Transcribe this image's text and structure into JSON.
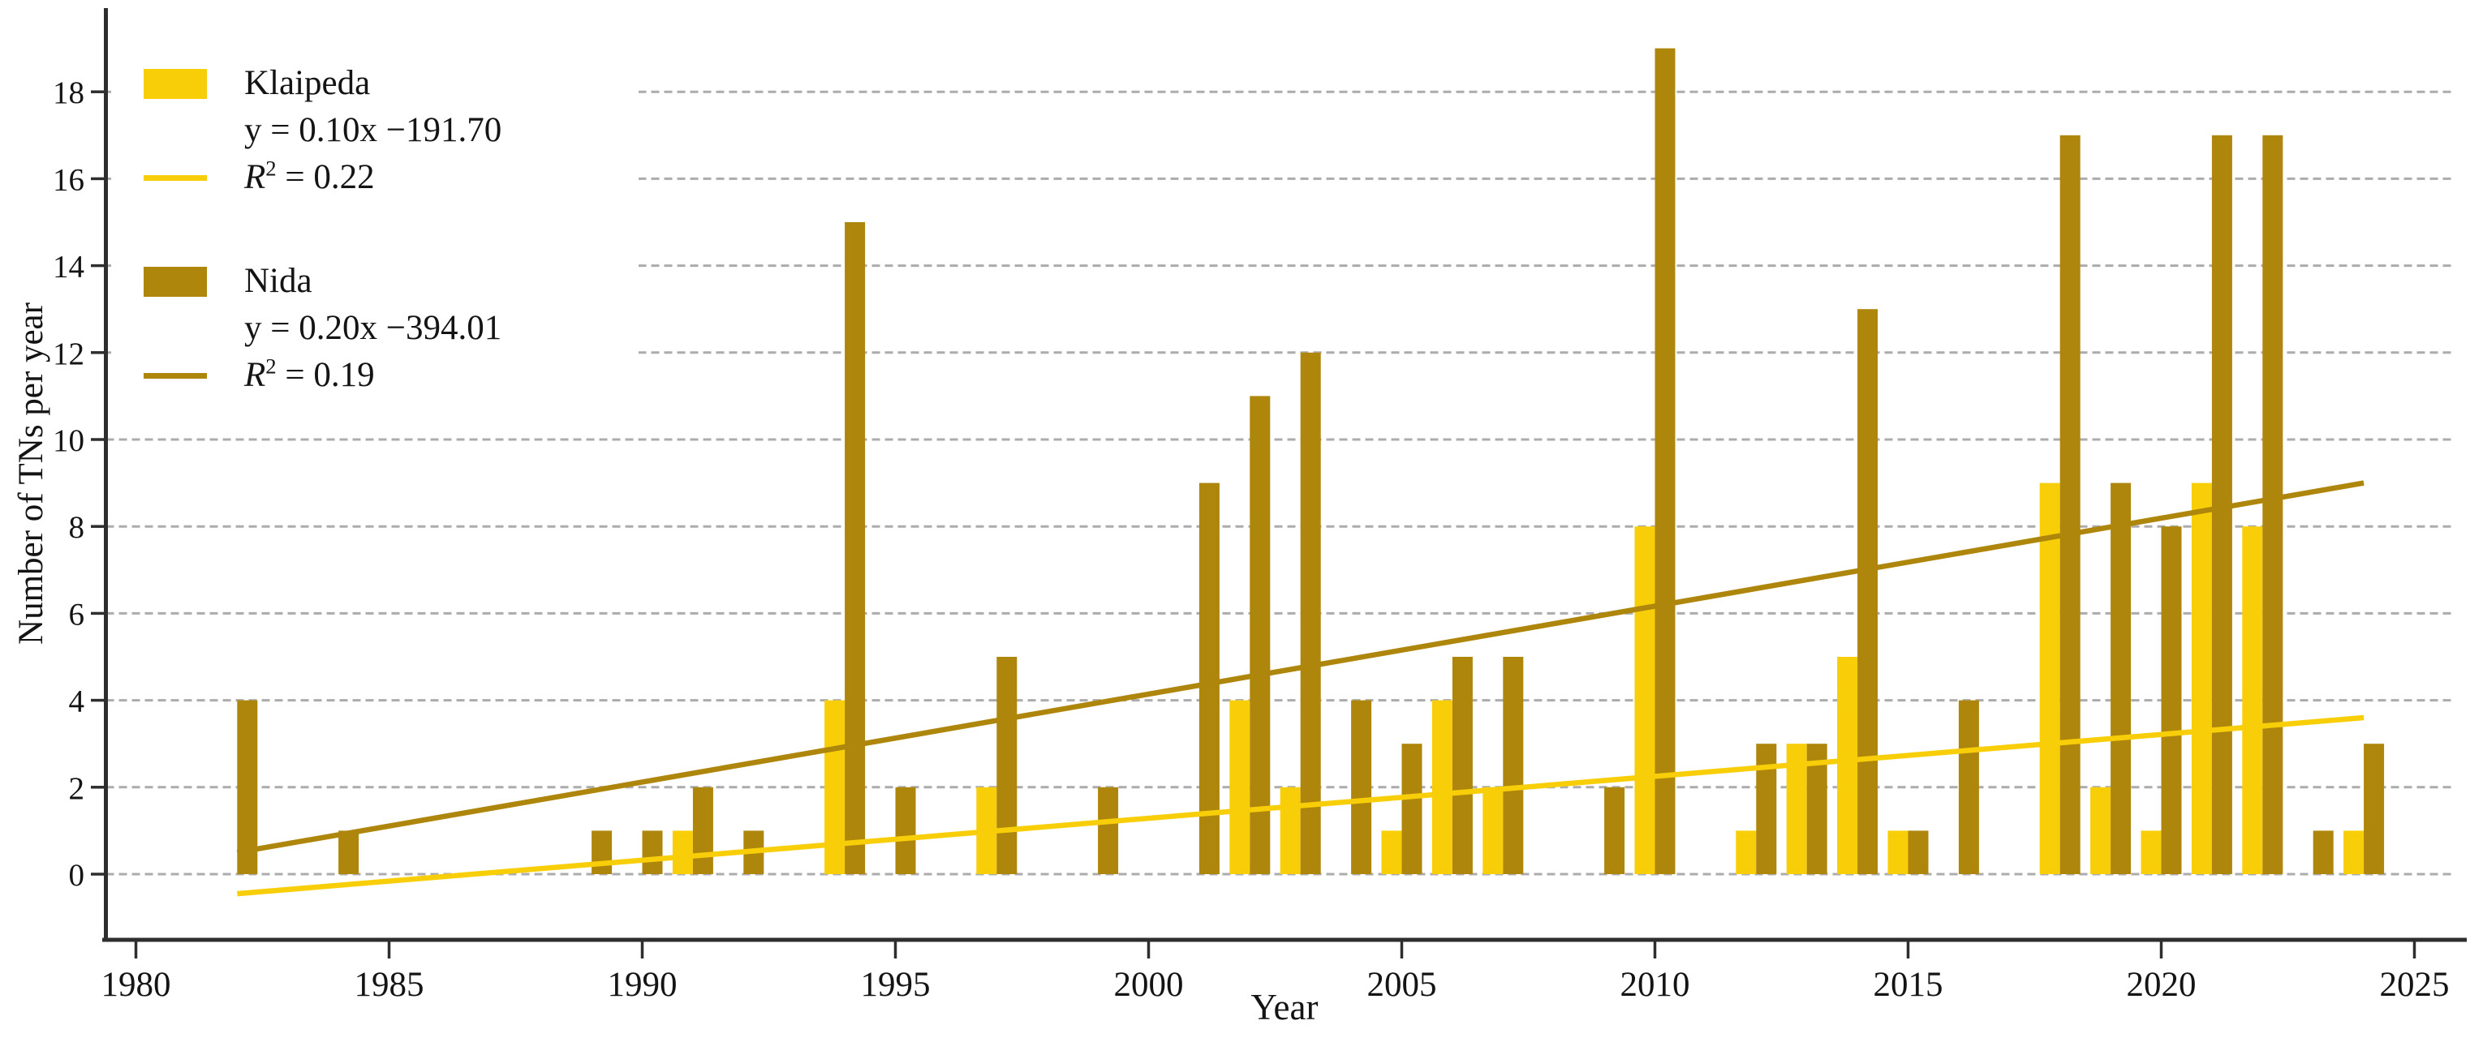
{
  "chart_data": {
    "type": "bar",
    "title": "",
    "xlabel": "Year",
    "ylabel": "Number of TNs per year",
    "x_ticks": [
      1980,
      1985,
      1990,
      1995,
      2000,
      2005,
      2010,
      2015,
      2020,
      2025
    ],
    "y_ticks": [
      0,
      2,
      4,
      6,
      8,
      10,
      12,
      14,
      16,
      18
    ],
    "xlim": [
      1979.4,
      2026
    ],
    "ylim": [
      -1.5,
      19.6
    ],
    "grid": "horizontal-dashed",
    "legend_position": "top-left-inside",
    "series": [
      {
        "name": "Klaipeda",
        "color": "#F8CE08",
        "equation": "y = 0.10x −191.70",
        "r2": "R² = 0.22",
        "trend": {
          "x1": 1982,
          "y1": -0.45,
          "x2": 2024,
          "y2": 3.6
        }
      },
      {
        "name": "Nida",
        "color": "#AE860B",
        "equation": "y = 0.20x −394.01",
        "r2": "R² = 0.19",
        "trend": {
          "x1": 1982,
          "y1": 0.5,
          "x2": 2024,
          "y2": 9.0
        }
      }
    ],
    "data": [
      {
        "year": 1982,
        "klaipeda": 0,
        "nida": 4
      },
      {
        "year": 1984,
        "klaipeda": 0,
        "nida": 1
      },
      {
        "year": 1989,
        "klaipeda": 0,
        "nida": 1
      },
      {
        "year": 1990,
        "klaipeda": 0,
        "nida": 1
      },
      {
        "year": 1991,
        "klaipeda": 1,
        "nida": 2
      },
      {
        "year": 1992,
        "klaipeda": 0,
        "nida": 1
      },
      {
        "year": 1994,
        "klaipeda": 4,
        "nida": 15
      },
      {
        "year": 1995,
        "klaipeda": 0,
        "nida": 2
      },
      {
        "year": 1997,
        "klaipeda": 2,
        "nida": 5
      },
      {
        "year": 1999,
        "klaipeda": 0,
        "nida": 2
      },
      {
        "year": 2001,
        "klaipeda": 0,
        "nida": 9
      },
      {
        "year": 2002,
        "klaipeda": 4,
        "nida": 11
      },
      {
        "year": 2003,
        "klaipeda": 2,
        "nida": 12
      },
      {
        "year": 2004,
        "klaipeda": 0,
        "nida": 4
      },
      {
        "year": 2005,
        "klaipeda": 1,
        "nida": 3
      },
      {
        "year": 2006,
        "klaipeda": 4,
        "nida": 5
      },
      {
        "year": 2007,
        "klaipeda": 2,
        "nida": 5
      },
      {
        "year": 2009,
        "klaipeda": 0,
        "nida": 2
      },
      {
        "year": 2010,
        "klaipeda": 8,
        "nida": 19
      },
      {
        "year": 2012,
        "klaipeda": 1,
        "nida": 3
      },
      {
        "year": 2013,
        "klaipeda": 3,
        "nida": 3
      },
      {
        "year": 2014,
        "klaipeda": 5,
        "nida": 13
      },
      {
        "year": 2015,
        "klaipeda": 1,
        "nida": 1
      },
      {
        "year": 2016,
        "klaipeda": 0,
        "nida": 4
      },
      {
        "year": 2018,
        "klaipeda": 9,
        "nida": 17
      },
      {
        "year": 2019,
        "klaipeda": 2,
        "nida": 9
      },
      {
        "year": 2020,
        "klaipeda": 1,
        "nida": 8
      },
      {
        "year": 2021,
        "klaipeda": 9,
        "nida": 17
      },
      {
        "year": 2022,
        "klaipeda": 8,
        "nida": 17
      },
      {
        "year": 2023,
        "klaipeda": 0,
        "nida": 1
      },
      {
        "year": 2024,
        "klaipeda": 1,
        "nida": 3
      }
    ],
    "colors": {
      "grid": "#ACACAC",
      "axis": "#2E2E2E",
      "text": "#141414"
    }
  }
}
